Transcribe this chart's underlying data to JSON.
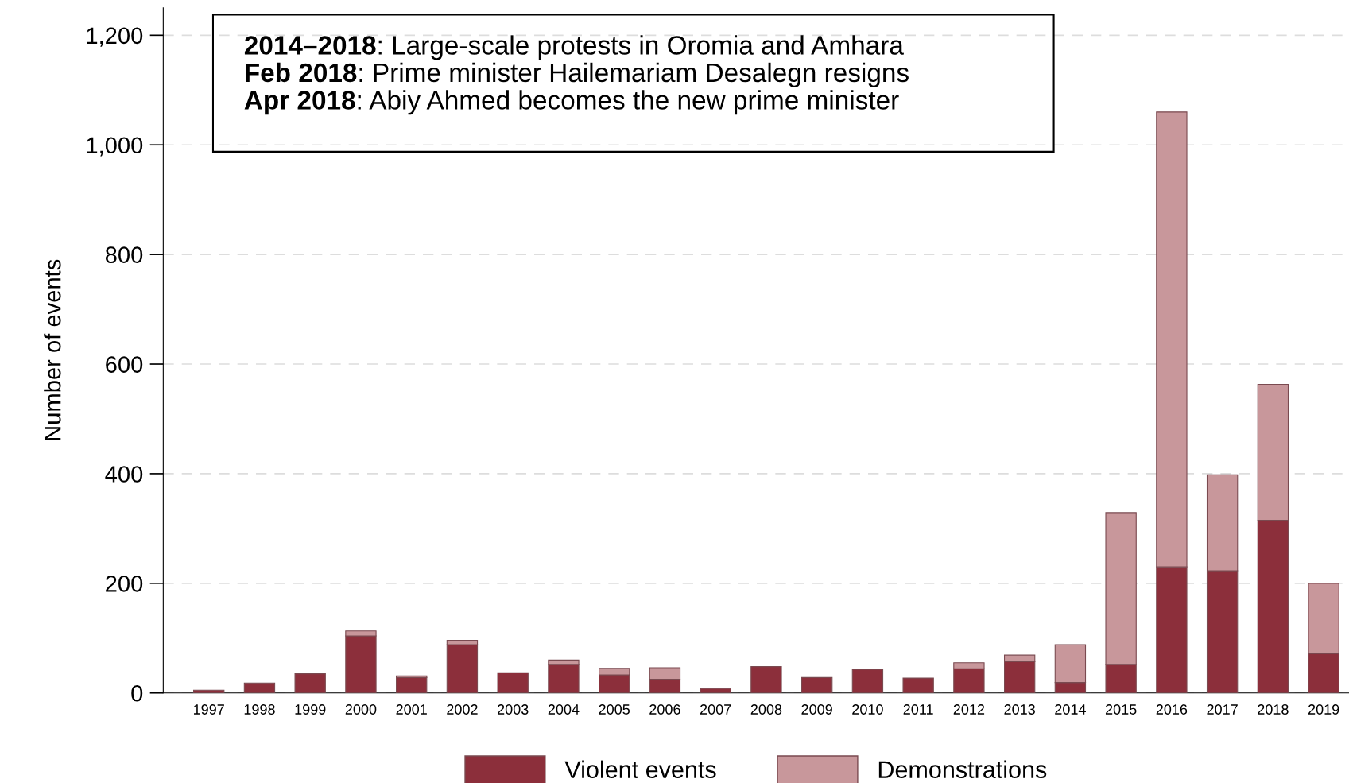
{
  "chart_data": {
    "type": "bar",
    "stacked": true,
    "ylabel": "Number of events",
    "categories": [
      "1997",
      "1998",
      "1999",
      "2000",
      "2001",
      "2002",
      "2003",
      "2004",
      "2005",
      "2006",
      "2007",
      "2008",
      "2009",
      "2010",
      "2011",
      "2012",
      "2013",
      "2014",
      "2015",
      "2016",
      "2017",
      "2018",
      "2019"
    ],
    "series": [
      {
        "name": "Violent events",
        "color": "#8c2f3b",
        "values": [
          5,
          18,
          35,
          104,
          28,
          88,
          37,
          52,
          33,
          25,
          8,
          48,
          28,
          43,
          27,
          44,
          57,
          19,
          52,
          230,
          223,
          315,
          72
        ]
      },
      {
        "name": "Demonstrations",
        "color": "#c8979b",
        "values": [
          0,
          0,
          0,
          9,
          3,
          8,
          0,
          8,
          12,
          21,
          0,
          0,
          0,
          0,
          0,
          11,
          12,
          69,
          277,
          830,
          175,
          248,
          128
        ]
      }
    ],
    "ylim": [
      0,
      1250
    ],
    "yticks": [
      0,
      {
        "value": 200,
        "label": "200"
      },
      {
        "value": 400,
        "label": "400"
      },
      {
        "value": 600,
        "label": "600"
      },
      {
        "value": 800,
        "label": "800"
      },
      {
        "value": 1000,
        "label": "1,000"
      },
      {
        "value": 1200,
        "label": "1,200"
      }
    ],
    "grid": "y",
    "legend": "bottom",
    "annotations": [
      "2014–2018: Large-scale protests in Oromia and Amhara",
      "Feb 2018: Prime minister Hailemariam Desalegn resigns",
      "Apr 2018: Abiy Ahmed becomes the new prime minister"
    ]
  }
}
